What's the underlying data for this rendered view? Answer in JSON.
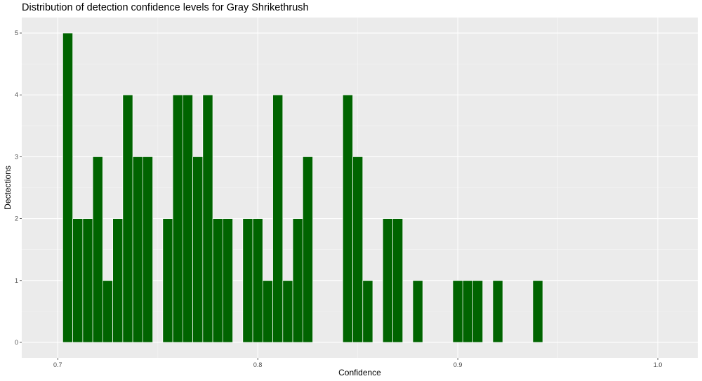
{
  "chart_data": {
    "type": "bar",
    "title": "Distribution of detection confidence levels for Gray Shrikethrush",
    "xlabel": "Confidence",
    "ylabel": "Dectections",
    "xlim": [
      0.682,
      1.02
    ],
    "ylim": [
      -0.25,
      5.25
    ],
    "x_ticks": [
      0.7,
      0.8,
      0.9,
      1.0
    ],
    "x_tick_labels": [
      "0.7",
      "0.8",
      "0.9",
      "1.0"
    ],
    "y_ticks": [
      0,
      1,
      2,
      3,
      4,
      5
    ],
    "y_tick_labels": [
      "0",
      "1",
      "2",
      "3",
      "4",
      "5"
    ],
    "bar_width": 0.005,
    "grid": true,
    "colors": {
      "bar_fill": "#006400",
      "panel_background": "#ebebeb",
      "grid_major": "#ffffff",
      "grid_minor": "#f5f5f5"
    },
    "x": [
      0.705,
      0.71,
      0.715,
      0.72,
      0.725,
      0.73,
      0.735,
      0.74,
      0.745,
      0.755,
      0.76,
      0.765,
      0.77,
      0.775,
      0.78,
      0.785,
      0.795,
      0.8,
      0.805,
      0.81,
      0.815,
      0.82,
      0.825,
      0.845,
      0.85,
      0.855,
      0.865,
      0.87,
      0.88,
      0.9,
      0.905,
      0.91,
      0.92,
      0.94
    ],
    "values": [
      5,
      2,
      2,
      3,
      1,
      2,
      4,
      3,
      3,
      2,
      4,
      4,
      3,
      4,
      2,
      2,
      2,
      2,
      1,
      4,
      1,
      2,
      3,
      4,
      3,
      1,
      2,
      2,
      1,
      1,
      1,
      1,
      1,
      1
    ]
  }
}
